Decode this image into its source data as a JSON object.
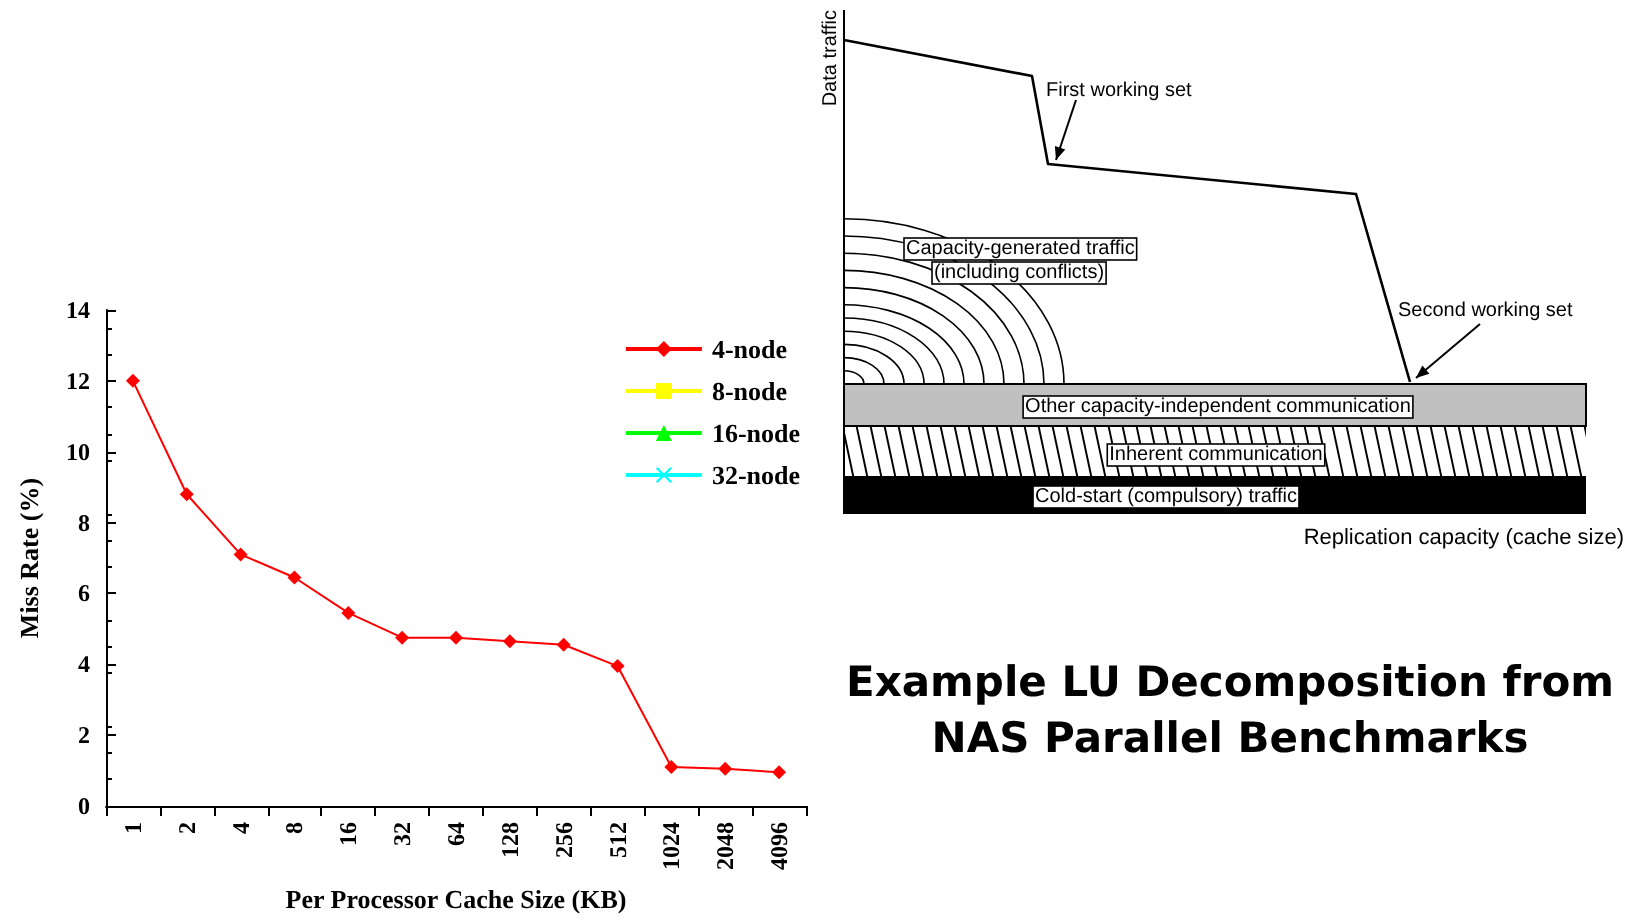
{
  "chart_data": [
    {
      "type": "line",
      "xlabel": "Per Processor Cache Size (KB)",
      "ylabel": "Miss Rate (%)",
      "categories": [
        "1",
        "2",
        "4",
        "8",
        "16",
        "32",
        "64",
        "128",
        "256",
        "512",
        "1024",
        "2048",
        "4096"
      ],
      "series": [
        {
          "name": "4-node",
          "color": "#ff0000",
          "marker": "diamond",
          "values": [
            12.0,
            8.8,
            7.1,
            6.45,
            5.45,
            4.75,
            4.75,
            4.65,
            4.55,
            3.95,
            1.1,
            1.05,
            0.95
          ]
        },
        {
          "name": "8-node",
          "color": "#ffff00",
          "marker": "square",
          "values": [
            null,
            null,
            null,
            null,
            null,
            null,
            null,
            null,
            null,
            null,
            null,
            null,
            null
          ]
        },
        {
          "name": "16-node",
          "color": "#00ff00",
          "marker": "triangle",
          "values": [
            null,
            null,
            null,
            null,
            null,
            null,
            null,
            null,
            null,
            null,
            null,
            null,
            null
          ]
        },
        {
          "name": "32-node",
          "color": "#00ffff",
          "marker": "cross",
          "values": [
            null,
            null,
            null,
            null,
            null,
            null,
            null,
            null,
            null,
            null,
            null,
            null,
            null
          ]
        }
      ],
      "ylim": [
        0,
        14
      ],
      "yticks": [
        0,
        2,
        4,
        6,
        8,
        10,
        12,
        14
      ],
      "grid": false,
      "legend": "top right"
    },
    {
      "type": "other",
      "title": "Example LU Decomposition from NAS Parallel Benchmarks",
      "xlabel": "Replication capacity (cache size)",
      "ylabel": "Data traffic",
      "annotations": [
        "First working set",
        "Second working set",
        "Capacity-generated traffic",
        "(including conflicts)",
        "Other capacity-independent communication",
        "Inherent communication",
        "Cold-start (compulsory) traffic"
      ]
    }
  ]
}
